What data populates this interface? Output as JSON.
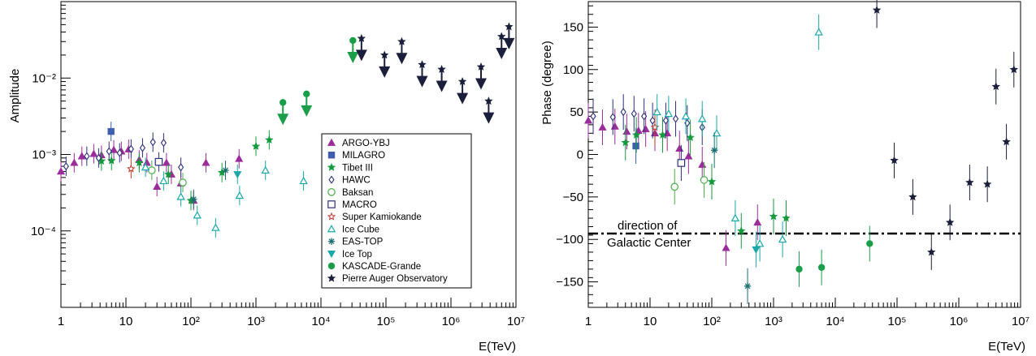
{
  "chart_data": [
    {
      "type": "scatter",
      "title": "",
      "xlabel": "E(TeV)",
      "ylabel": "Amplitude",
      "xscale": "log",
      "yscale": "log",
      "xlim": [
        1,
        10000000
      ],
      "ylim": [
        1e-05,
        0.1
      ],
      "x_ticks": [
        "1",
        "10",
        "10²",
        "10³",
        "10⁴",
        "10⁵",
        "10⁶",
        "10⁷"
      ],
      "y_ticks": [
        "10⁻⁴",
        "10⁻³",
        "10⁻²"
      ],
      "grid": false,
      "legend": {
        "placement": "bottom-right",
        "entries": [
          {
            "name": "ARGO-YBJ",
            "marker": "triangle",
            "color": "#9b2d9b"
          },
          {
            "name": "MILAGRO",
            "marker": "square",
            "color": "#3f5fae"
          },
          {
            "name": "Tibet III",
            "marker": "star",
            "color": "#159a3e"
          },
          {
            "name": "HAWC",
            "marker": "diamond-open",
            "color": "#2b2f7a"
          },
          {
            "name": "Baksan",
            "marker": "circle-open",
            "color": "#4cae4c"
          },
          {
            "name": "MACRO",
            "marker": "square-open",
            "color": "#2b2f7a"
          },
          {
            "name": "Super Kamiokande",
            "marker": "star-open",
            "color": "#c0392b"
          },
          {
            "name": "Ice Cube",
            "marker": "triangle-open",
            "color": "#1aa8a8"
          },
          {
            "name": "EAS-TOP",
            "marker": "asterisk",
            "color": "#1a6f6f"
          },
          {
            "name": "Ice Top",
            "marker": "triangle-down",
            "color": "#1aa8a8"
          },
          {
            "name": "KASCADE-Grande",
            "marker": "circle",
            "color": "#1a9e4a"
          },
          {
            "name": "Pierre Auger Observatory",
            "marker": "star",
            "color": "#1b1f3b"
          }
        ]
      },
      "series": [
        {
          "name": "ARGO-YBJ",
          "points": [
            [
              1.0,
              0.0006
            ],
            [
              1.6,
              0.00078
            ],
            [
              2.1,
              0.00095
            ],
            [
              3.2,
              0.00102
            ],
            [
              4.2,
              0.00098
            ],
            [
              6.5,
              0.00115
            ],
            [
              8.5,
              0.0011
            ],
            [
              11,
              0.00117
            ],
            [
              16,
              0.00085
            ],
            [
              21,
              0.00078
            ],
            [
              30,
              0.00038
            ],
            [
              42,
              0.00078
            ],
            [
              50,
              0.00055
            ],
            [
              70,
              0.00042
            ],
            [
              110,
              0.00025
            ],
            [
              170,
              0.00078
            ],
            [
              550,
              0.00088
            ]
          ]
        },
        {
          "name": "MILAGRO",
          "points": [
            [
              5.9,
              0.002
            ]
          ]
        },
        {
          "name": "Tibet III",
          "points": [
            [
              4.2,
              0.00082
            ],
            [
              6.0,
              0.00083
            ],
            [
              16,
              0.00078
            ],
            [
              45,
              0.00055
            ],
            [
              100,
              0.00025
            ],
            [
              300,
              0.00058
            ],
            [
              1000,
              0.00128
            ],
            [
              1600,
              0.00155
            ]
          ]
        },
        {
          "name": "HAWC",
          "points": [
            [
              1.2,
              0.0007
            ],
            [
              2.5,
              0.00095
            ],
            [
              3.8,
              0.0009
            ],
            [
              5.5,
              0.0011
            ],
            [
              8,
              0.00105
            ],
            [
              12,
              0.00118
            ],
            [
              18,
              0.00122
            ],
            [
              26,
              0.00145
            ],
            [
              38,
              0.00142
            ],
            [
              70,
              0.00068
            ]
          ]
        },
        {
          "name": "Baksan",
          "points": [
            [
              25,
              0.00062
            ],
            [
              75,
              0.00043
            ]
          ]
        },
        {
          "name": "MACRO",
          "points": [
            [
              32,
              0.0008
            ]
          ]
        },
        {
          "name": "Super Kamiokande",
          "points": [
            [
              12,
              0.00065
            ]
          ]
        },
        {
          "name": "Ice Cube",
          "points": [
            [
              20,
              0.00068
            ],
            [
              38,
              0.00045
            ],
            [
              70,
              0.00028
            ],
            [
              125,
              0.00016
            ],
            [
              240,
              0.00011
            ],
            [
              560,
              0.00029
            ],
            [
              1400,
              0.00062
            ],
            [
              5400,
              0.00045
            ]
          ]
        },
        {
          "name": "EAS-TOP",
          "points": [
            [
              110,
              0.00026
            ],
            [
              340,
              0.00062
            ]
          ]
        },
        {
          "name": "Ice Top",
          "points": [
            [
              520,
              0.00055
            ]
          ]
        },
        {
          "name": "KASCADE-Grande",
          "points": [
            [
              2600,
              0.0048
            ],
            [
              6000,
              0.0062
            ],
            [
              31000,
              0.031
            ]
          ],
          "upper_limits": true
        },
        {
          "name": "Pierre Auger Observatory",
          "points": [
            [
              42000,
              0.033
            ],
            [
              95000,
              0.02
            ],
            [
              175000,
              0.03
            ],
            [
              360000,
              0.015
            ],
            [
              720000,
              0.013
            ],
            [
              1500000,
              0.009
            ],
            [
              2900000,
              0.014
            ],
            [
              3800000,
              0.005
            ],
            [
              6000000,
              0.035
            ],
            [
              7800000,
              0.047
            ]
          ],
          "upper_limits": true
        }
      ]
    },
    {
      "type": "scatter",
      "title": "",
      "xlabel": "E(TeV)",
      "ylabel": "Phase (degree)",
      "xscale": "log",
      "xlim": [
        1,
        10000000
      ],
      "ylim": [
        -180,
        180
      ],
      "x_ticks": [
        "1",
        "10",
        "10²",
        "10³",
        "10⁴",
        "10⁵",
        "10⁶",
        "10⁷"
      ],
      "y_ticks": [
        "−150",
        "−100",
        "−50",
        "0",
        "50",
        "100",
        "150"
      ],
      "grid": false,
      "reference_line": {
        "y": -93,
        "label_line1": "direction of",
        "label_line2": "Galactic Center"
      },
      "series": [
        {
          "name": "ARGO-YBJ",
          "points": [
            [
              1.0,
              40
            ],
            [
              1.7,
              32
            ],
            [
              2.7,
              33
            ],
            [
              4.2,
              27
            ],
            [
              6.5,
              28
            ],
            [
              8.5,
              30
            ],
            [
              12,
              25
            ],
            [
              19,
              25
            ],
            [
              30,
              7
            ],
            [
              42,
              -2
            ],
            [
              70,
              -12
            ],
            [
              170,
              -110
            ],
            [
              550,
              -80
            ]
          ]
        },
        {
          "name": "MILAGRO",
          "points": [
            [
              5.9,
              10
            ]
          ]
        },
        {
          "name": "Tibet III",
          "points": [
            [
              4.0,
              14
            ],
            [
              6.0,
              23
            ],
            [
              16,
              23
            ],
            [
              45,
              20
            ],
            [
              100,
              -32
            ],
            [
              300,
              -90
            ],
            [
              1000,
              -73
            ],
            [
              1600,
              -75
            ]
          ]
        },
        {
          "name": "HAWC",
          "points": [
            [
              1.2,
              45
            ],
            [
              2.5,
              44
            ],
            [
              3.7,
              50
            ],
            [
              5.5,
              48
            ],
            [
              8,
              45
            ],
            [
              11,
              40
            ],
            [
              18,
              40
            ],
            [
              26,
              42
            ],
            [
              40,
              37
            ],
            [
              70,
              32
            ]
          ]
        },
        {
          "name": "Baksan",
          "points": [
            [
              25,
              -38
            ],
            [
              75,
              -30
            ]
          ]
        },
        {
          "name": "MACRO",
          "points": [
            [
              32,
              -10
            ]
          ]
        },
        {
          "name": "Super Kamiokande",
          "points": [
            [
              12,
              32
            ]
          ]
        },
        {
          "name": "Ice Cube",
          "points": [
            [
              13,
              50
            ],
            [
              20,
              48
            ],
            [
              38,
              45
            ],
            [
              70,
              42
            ],
            [
              120,
              25
            ],
            [
              240,
              -75
            ],
            [
              600,
              -105
            ],
            [
              1400,
              -100
            ],
            [
              5400,
              144
            ]
          ]
        },
        {
          "name": "EAS-TOP",
          "points": [
            [
              110,
              5
            ],
            [
              380,
              -155
            ]
          ]
        },
        {
          "name": "Ice Top",
          "points": [
            [
              520,
              -112
            ]
          ]
        },
        {
          "name": "KASCADE-Grande",
          "points": [
            [
              2600,
              -135
            ],
            [
              6000,
              -133
            ],
            [
              36000,
              -105
            ]
          ]
        },
        {
          "name": "Pierre Auger Observatory",
          "points": [
            [
              47000,
              170
            ],
            [
              90000,
              -7
            ],
            [
              180000,
              -50
            ],
            [
              360000,
              -115
            ],
            [
              720000,
              -80
            ],
            [
              1500000,
              -33
            ],
            [
              2900000,
              -35
            ],
            [
              4000000,
              80
            ],
            [
              5900000,
              15
            ],
            [
              7800000,
              100
            ]
          ]
        }
      ]
    }
  ]
}
